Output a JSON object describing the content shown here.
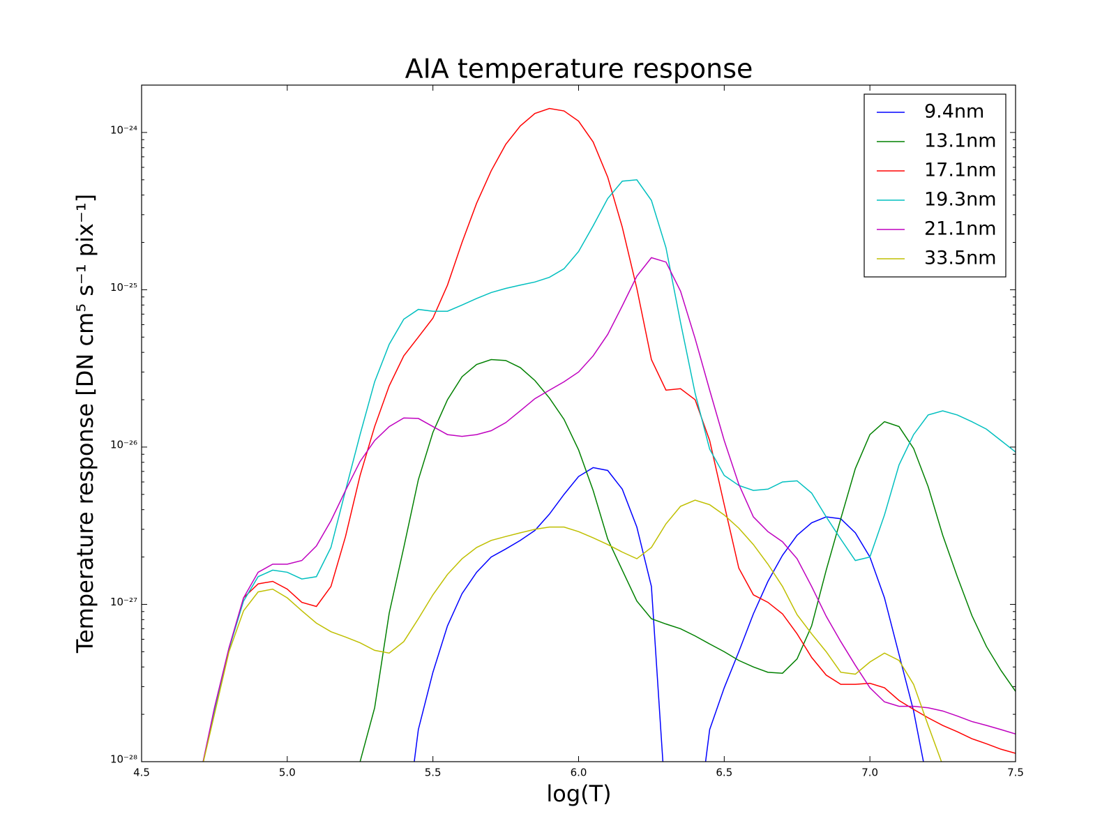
{
  "chart_data": {
    "type": "line",
    "title": "AIA temperature response",
    "xlabel": "log(T)",
    "ylabel": "Temperature response [DN cm⁵ s⁻¹ pix⁻¹]",
    "yscale": "log",
    "grid": false,
    "legend_loc": "upper right",
    "xlim": [
      4.5,
      7.5
    ],
    "xticks": [
      4.5,
      {
        "value": 5,
        "label": "5.0"
      },
      5.5,
      {
        "value": 6,
        "label": "6.0"
      },
      6.5,
      {
        "value": 7,
        "label": "7.0"
      },
      7.5
    ],
    "ylim": [
      1e-28,
      2e-24
    ],
    "yticks": [
      {
        "value": 1e-28,
        "label": "10⁻²⁸"
      },
      {
        "value": 1e-27,
        "label": "10⁻²⁷"
      },
      {
        "value": 1e-26,
        "label": "10⁻²⁶"
      },
      {
        "value": 1e-25,
        "label": "10⁻²⁵"
      },
      {
        "value": 1e-24,
        "label": "10⁻²⁴"
      }
    ],
    "x": [
      4.7,
      4.75,
      4.8,
      4.85,
      4.9,
      4.95,
      5.0,
      5.05,
      5.1,
      5.15,
      5.2,
      5.25,
      5.3,
      5.35,
      5.4,
      5.45,
      5.5,
      5.55,
      5.6,
      5.65,
      5.7,
      5.75,
      5.8,
      5.85,
      5.9,
      5.95,
      6.0,
      6.05,
      6.1,
      6.15,
      6.2,
      6.25,
      6.3,
      6.35,
      6.4,
      6.45,
      6.5,
      6.55,
      6.6,
      6.65,
      6.7,
      6.75,
      6.8,
      6.85,
      6.9,
      6.95,
      7.0,
      7.05,
      7.1,
      7.15,
      7.2,
      7.25,
      7.3,
      7.35,
      7.4,
      7.45,
      7.5
    ],
    "series": [
      {
        "name": "9.4nm",
        "color": "#0000ff",
        "values": [
          null,
          null,
          null,
          null,
          null,
          null,
          null,
          null,
          null,
          null,
          null,
          null,
          null,
          null,
          3e-29,
          1.6e-28,
          3.7e-28,
          7.3e-28,
          1.17e-27,
          1.6e-27,
          2e-27,
          2.25e-27,
          2.55e-27,
          2.95e-27,
          3.75e-27,
          5e-27,
          6.5e-27,
          7.4e-27,
          7.1e-27,
          5.4e-27,
          3.1e-27,
          1.3e-27,
          5e-29,
          null,
          3e-29,
          1.6e-28,
          2.95e-28,
          5e-28,
          8.7e-28,
          1.4e-27,
          2.05e-27,
          2.75e-27,
          3.3e-27,
          3.6e-27,
          3.5e-27,
          2.85e-27,
          2e-27,
          1.1e-27,
          4.8e-28,
          2.1e-28,
          7e-29,
          null,
          null,
          null,
          null,
          null,
          null
        ]
      },
      {
        "name": "13.1nm",
        "color": "#008000",
        "values": [
          null,
          null,
          null,
          null,
          null,
          null,
          null,
          null,
          null,
          null,
          4e-29,
          1e-28,
          2.2e-28,
          8.8e-28,
          2.3e-27,
          6.2e-27,
          1.24e-26,
          2e-26,
          2.8e-26,
          3.35e-26,
          3.6e-26,
          3.55e-26,
          3.2e-26,
          2.65e-26,
          2.05e-26,
          1.5e-26,
          9.6e-27,
          5.3e-27,
          2.6e-27,
          1.65e-27,
          1.05e-27,
          8.1e-28,
          7.5e-28,
          7e-28,
          6.3e-28,
          5.6e-28,
          5e-28,
          4.4e-28,
          4e-28,
          3.7e-28,
          3.65e-28,
          4.5e-28,
          7.3e-28,
          1.65e-27,
          3.5e-27,
          7.3e-27,
          1.2e-26,
          1.45e-26,
          1.35e-26,
          9.8e-27,
          5.6e-27,
          2.75e-27,
          1.5e-27,
          8.5e-28,
          5.4e-28,
          3.8e-28,
          2.8e-28
        ]
      },
      {
        "name": "17.1nm",
        "color": "#ff0000",
        "values": [
          8e-29,
          2.1e-28,
          5.2e-28,
          1.1e-27,
          1.35e-27,
          1.4e-27,
          1.25e-27,
          1.03e-27,
          9.7e-28,
          1.3e-27,
          2.7e-27,
          6.6e-27,
          1.35e-26,
          2.45e-26,
          3.8e-26,
          5e-26,
          6.6e-26,
          1.07e-25,
          2e-25,
          3.55e-25,
          5.7e-25,
          8.4e-25,
          1.1e-24,
          1.32e-24,
          1.42e-24,
          1.37e-24,
          1.18e-24,
          8.7e-25,
          5.2e-25,
          2.5e-25,
          1.02e-25,
          3.6e-26,
          2.3e-26,
          2.35e-26,
          2e-26,
          1.1e-26,
          4.3e-27,
          1.7e-27,
          1.15e-27,
          1.03e-27,
          8.7e-28,
          6.5e-28,
          4.6e-28,
          3.55e-28,
          3.1e-28,
          3.1e-28,
          3.15e-28,
          2.95e-28,
          2.45e-28,
          2.15e-28,
          1.9e-28,
          1.7e-28,
          1.55e-28,
          1.4e-28,
          1.3e-28,
          1.2e-28,
          1.13e-28
        ]
      },
      {
        "name": "19.3nm",
        "color": "#00bfbf",
        "values": [
          8e-29,
          2.1e-28,
          5.2e-28,
          1.05e-27,
          1.5e-27,
          1.65e-27,
          1.6e-27,
          1.45e-27,
          1.5e-27,
          2.3e-27,
          5.3e-27,
          1.2e-26,
          2.6e-26,
          4.5e-26,
          6.5e-26,
          7.5e-26,
          7.3e-26,
          7.3e-26,
          8e-26,
          8.8e-26,
          9.6e-26,
          1.02e-25,
          1.07e-25,
          1.12e-25,
          1.2e-25,
          1.36e-25,
          1.75e-25,
          2.55e-25,
          3.8e-25,
          4.9e-25,
          5e-25,
          3.7e-25,
          1.85e-25,
          6.2e-26,
          2.2e-26,
          9.7e-27,
          6.6e-27,
          5.7e-27,
          5.3e-27,
          5.4e-27,
          6e-27,
          6.1e-27,
          5.1e-27,
          3.6e-27,
          2.6e-27,
          1.9e-27,
          2e-27,
          3.7e-27,
          7.7e-27,
          1.2e-26,
          1.6e-26,
          1.7e-26,
          1.6e-26,
          1.45e-26,
          1.3e-26,
          1.1e-26,
          9.3e-27
        ]
      },
      {
        "name": "21.1nm",
        "color": "#bf00bf",
        "values": [
          8e-29,
          2.2e-28,
          5.3e-28,
          1.1e-27,
          1.6e-27,
          1.8e-27,
          1.8e-27,
          1.9e-27,
          2.35e-27,
          3.4e-27,
          5.3e-27,
          8.1e-27,
          1.1e-26,
          1.35e-26,
          1.53e-26,
          1.52e-26,
          1.35e-26,
          1.2e-26,
          1.17e-26,
          1.2e-26,
          1.27e-26,
          1.43e-26,
          1.7e-26,
          2.03e-26,
          2.3e-26,
          2.6e-26,
          3e-26,
          3.8e-26,
          5.2e-26,
          7.9e-26,
          1.22e-25,
          1.6e-25,
          1.5e-25,
          9.8e-26,
          4.9e-26,
          2.3e-26,
          1.1e-26,
          5.8e-27,
          3.6e-27,
          2.9e-27,
          2.5e-27,
          1.95e-27,
          1.3e-27,
          8.4e-28,
          5.8e-28,
          4.1e-28,
          2.95e-28,
          2.4e-28,
          2.25e-28,
          2.25e-28,
          2.2e-28,
          2.1e-28,
          1.95e-28,
          1.8e-28,
          1.7e-28,
          1.6e-28,
          1.5e-28
        ]
      },
      {
        "name": "33.5nm",
        "color": "#bfbf00",
        "values": [
          8e-29,
          2e-28,
          5e-28,
          9.1e-28,
          1.2e-27,
          1.25e-27,
          1.1e-27,
          9.1e-28,
          7.6e-28,
          6.7e-28,
          6.2e-28,
          5.7e-28,
          5.1e-28,
          4.9e-28,
          5.8e-28,
          8.1e-28,
          1.15e-27,
          1.55e-27,
          1.95e-27,
          2.3e-27,
          2.55e-27,
          2.7e-27,
          2.85e-27,
          3e-27,
          3.1e-27,
          3.1e-27,
          2.9e-27,
          2.65e-27,
          2.4e-27,
          2.15e-27,
          1.95e-27,
          2.3e-27,
          3.25e-27,
          4.2e-27,
          4.6e-27,
          4.3e-27,
          3.7e-27,
          3.05e-27,
          2.4e-27,
          1.8e-27,
          1.3e-27,
          8.6e-28,
          6.5e-28,
          5e-28,
          3.7e-28,
          3.6e-28,
          4.3e-28,
          4.9e-28,
          4.4e-28,
          3.1e-28,
          1.7e-28,
          9.5e-29,
          5e-29,
          null,
          null,
          null,
          null
        ]
      }
    ]
  }
}
